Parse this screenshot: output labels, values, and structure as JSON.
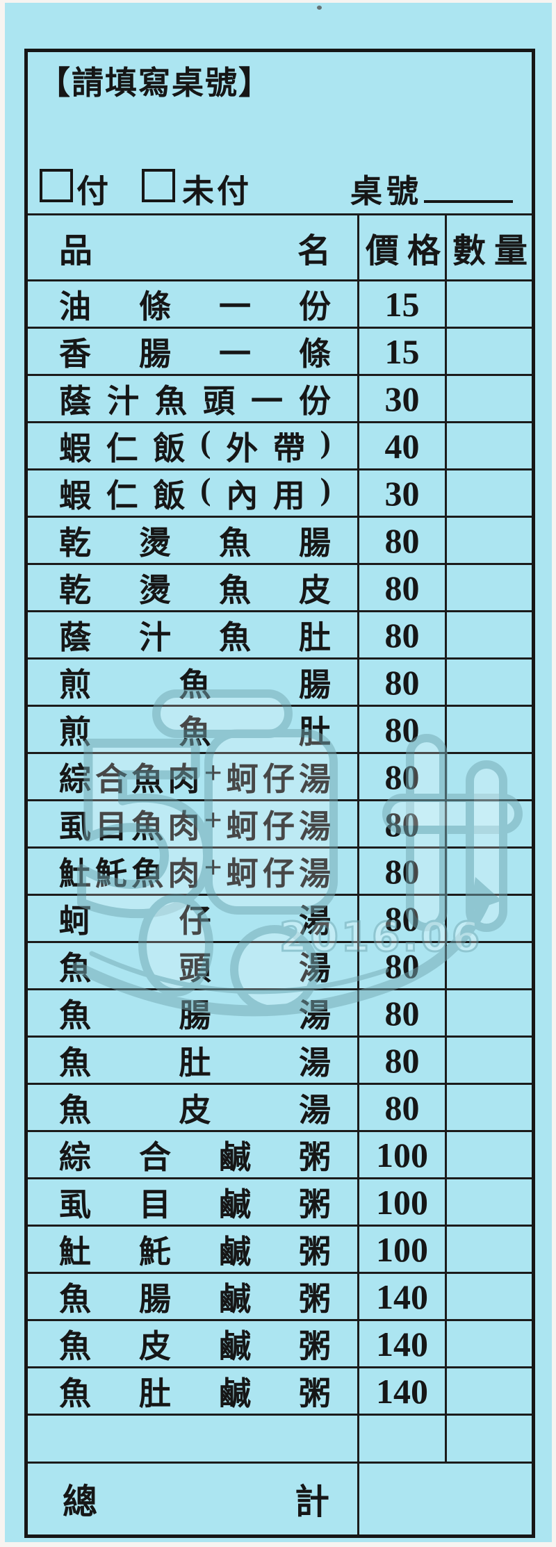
{
  "form": {
    "title": "【請填寫桌號】",
    "paid_label": "付",
    "unpaid_label": "未付",
    "table_number_label": "桌號",
    "table_number_value": "",
    "header": {
      "item_left": "品",
      "item_right": "名",
      "price": "價格",
      "quantity": "數量"
    },
    "items": [
      {
        "name": "魚肚鹹粥",
        "price": "140",
        "qty": ""
      },
      {
        "name": "魚皮鹹粥",
        "price": "140",
        "qty": ""
      },
      {
        "name": "魚腸鹹粥",
        "price": "140",
        "qty": ""
      },
      {
        "name": "𩵚魠鹹粥",
        "price": "100",
        "qty": ""
      },
      {
        "name": "虱目鹹粥",
        "price": "100",
        "qty": ""
      },
      {
        "name": "綜合鹹粥",
        "price": "100",
        "qty": ""
      },
      {
        "name": "魚皮湯",
        "price": "80",
        "qty": ""
      },
      {
        "name": "魚肚湯",
        "price": "80",
        "qty": ""
      },
      {
        "name": "魚腸湯",
        "price": "80",
        "qty": ""
      },
      {
        "name": "魚頭湯",
        "price": "80",
        "qty": ""
      },
      {
        "name": "蚵仔湯",
        "price": "80",
        "qty": ""
      },
      {
        "name": "𩵚魠魚肉+蚵仔湯",
        "price": "80",
        "qty": ""
      },
      {
        "name": "虱目魚肉+蚵仔湯",
        "price": "80",
        "qty": ""
      },
      {
        "name": "綜合魚肉+蚵仔湯",
        "price": "80",
        "qty": ""
      },
      {
        "name": "煎魚肚",
        "price": "80",
        "qty": ""
      },
      {
        "name": "煎魚腸",
        "price": "80",
        "qty": ""
      },
      {
        "name": "蔭汁魚肚",
        "price": "80",
        "qty": ""
      },
      {
        "name": "乾燙魚皮",
        "price": "80",
        "qty": ""
      },
      {
        "name": "乾燙魚腸",
        "price": "80",
        "qty": ""
      },
      {
        "name": "蝦仁飯(內用)",
        "price": "30",
        "qty": ""
      },
      {
        "name": "蝦仁飯(外帶)",
        "price": "40",
        "qty": ""
      },
      {
        "name": "蔭汁魚頭一份",
        "price": "30",
        "qty": ""
      },
      {
        "name": "香腸一條",
        "price": "15",
        "qty": ""
      },
      {
        "name": "油條一份",
        "price": "15",
        "qty": ""
      }
    ],
    "blank_row": {
      "name": "",
      "price": "",
      "qty": ""
    },
    "total_label": "總計",
    "total_value": ""
  },
  "watermark": {
    "date_text": "2016.06"
  },
  "colors": {
    "paper": "#ace5f1",
    "ink": "#161616",
    "grid_line": "#1b1b1b",
    "watermark_stroke": "#74a8b2"
  }
}
